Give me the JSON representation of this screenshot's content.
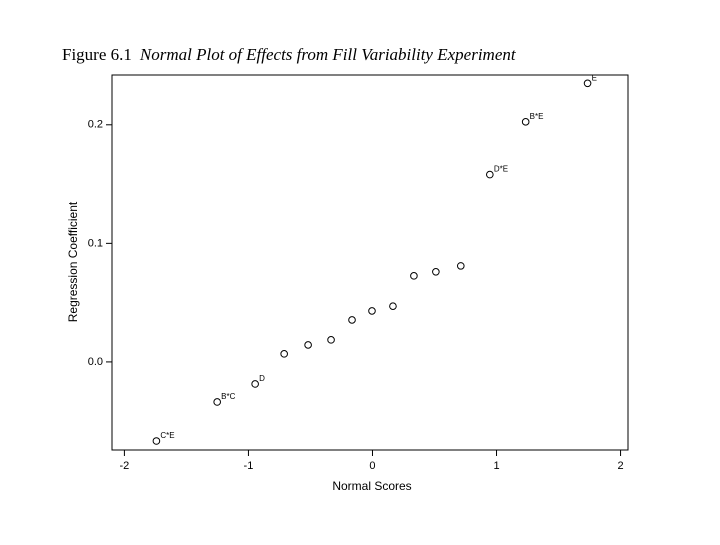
{
  "chart_data": {
    "type": "scatter",
    "figure_label": "Figure 6.1",
    "title": "Normal Plot of Effects from Fill Variability Experiment",
    "xlabel": "Normal Scores",
    "ylabel": "Regression Coefficient",
    "x": [
      -1.742,
      -1.252,
      -0.946,
      -0.712,
      -0.519,
      -0.334,
      -0.165,
      -0.004,
      0.165,
      0.334,
      0.511,
      0.712,
      0.946,
      1.235,
      1.734
    ],
    "y": [
      -0.0667,
      -0.0338,
      -0.0186,
      0.0068,
      0.0143,
      0.0186,
      0.0354,
      0.043,
      0.047,
      0.0726,
      0.076,
      0.081,
      0.158,
      0.2025,
      0.235
    ],
    "point_labels": [
      "C*E",
      "B*C",
      "D",
      null,
      null,
      null,
      null,
      null,
      null,
      null,
      null,
      null,
      "D*E",
      "B*E",
      "E"
    ],
    "color": "#000000",
    "xlim": [
      -2.1,
      2.06
    ],
    "ylim": [
      -0.0743,
      0.242
    ],
    "xticks": [
      -2,
      -1,
      0,
      1,
      2
    ],
    "yticks": [
      {
        "value": 0,
        "label": "0.0"
      },
      0.1,
      0.2
    ]
  }
}
